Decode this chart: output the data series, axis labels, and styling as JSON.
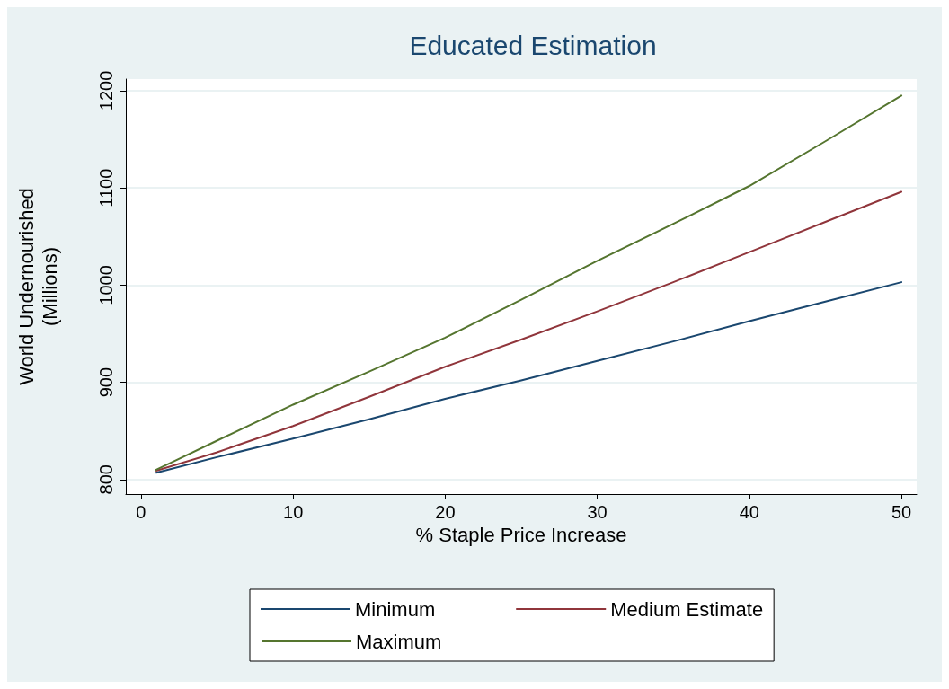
{
  "chart_data": {
    "type": "line",
    "title": "Educated Estimation",
    "xlabel": "% Staple Price Increase",
    "ylabel": "World Undernourished\n(Millions)",
    "x": [
      1,
      5,
      10,
      15,
      20,
      25,
      30,
      35,
      40,
      45,
      50
    ],
    "series": [
      {
        "name": "Minimum",
        "color": "#1a476f",
        "values": [
          807,
          823,
          842,
          862,
          883,
          902,
          922,
          942,
          963,
          983,
          1003
        ]
      },
      {
        "name": "Medium Estimate",
        "color": "#90353b",
        "values": [
          809,
          828,
          855,
          885,
          916,
          944,
          973,
          1003,
          1034,
          1065,
          1096
        ]
      },
      {
        "name": "Maximum",
        "color": "#55752f",
        "values": [
          810,
          840,
          877,
          911,
          946,
          985,
          1025,
          1063,
          1102,
          1148,
          1195
        ]
      }
    ],
    "xlim": [
      -1,
      51
    ],
    "xticks": [
      0,
      10,
      20,
      30,
      40,
      50
    ],
    "ylim": [
      785,
      1212
    ],
    "yticks": [
      800,
      900,
      1000,
      1100,
      1200
    ],
    "grid": "y",
    "legend": "bottom",
    "marker": "none",
    "line_style": "solid"
  }
}
